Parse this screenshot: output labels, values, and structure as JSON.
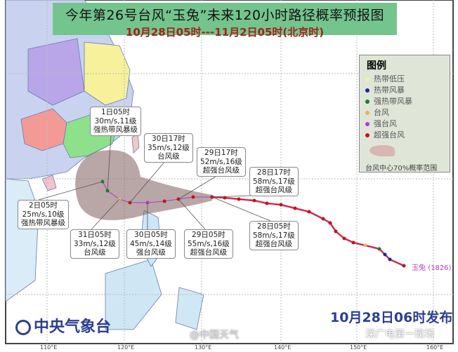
{
  "title": "今年第26号台风“玉兔”未来120小时路径概率预报图",
  "subtitle": "10月28日05时---11月2日05时(北京时)",
  "legend": {
    "heading": "图例",
    "items": [
      {
        "label": "热带低压",
        "color": "#f3f0a0"
      },
      {
        "label": "热带风暴",
        "color": "#1a2a9a"
      },
      {
        "label": "强热带风暴",
        "color": "#1f7a2a"
      },
      {
        "label": "台风",
        "color": "#e0b070"
      },
      {
        "label": "强台风",
        "color": "#b03cc8"
      },
      {
        "label": "超强台风",
        "color": "#c0141a"
      }
    ],
    "cone_label": "台风中心70%概率范围"
  },
  "forecast_labels": [
    {
      "time": "1日05时",
      "wind": "30m/s,11级",
      "level": "强热带风暴级"
    },
    {
      "time": "30日17时",
      "wind": "35m/s,12级",
      "level": "台风级"
    },
    {
      "time": "29日17时",
      "wind": "52m/s,16级",
      "level": "超强台风级"
    },
    {
      "time": "28日17时",
      "wind": "58m/s,17级",
      "level": "超强台风级"
    },
    {
      "time": "2日05时",
      "wind": "25m/s,10级",
      "level": "强热带风暴级"
    },
    {
      "time": "31日05时",
      "wind": "33m/s,12级",
      "level": "台风级"
    },
    {
      "time": "30日05时",
      "wind": "45m/s,14级",
      "level": "强台风级"
    },
    {
      "time": "29日05时",
      "wind": "55m/s,16级",
      "level": "超强台风级"
    },
    {
      "time": "28日05时",
      "wind": "58m/s,17级",
      "level": "超强台风级"
    }
  ],
  "storm_name": "玉兔",
  "storm_id": "(1826)",
  "axis_ticks": [
    "110°E",
    "120°E",
    "130°E",
    "140°E",
    "150°E",
    "160°E"
  ],
  "agency": "中央气象台",
  "issued": "10月28日06时发布",
  "watermarks": [
    "@中国天气",
    "深广电第一现场"
  ]
}
